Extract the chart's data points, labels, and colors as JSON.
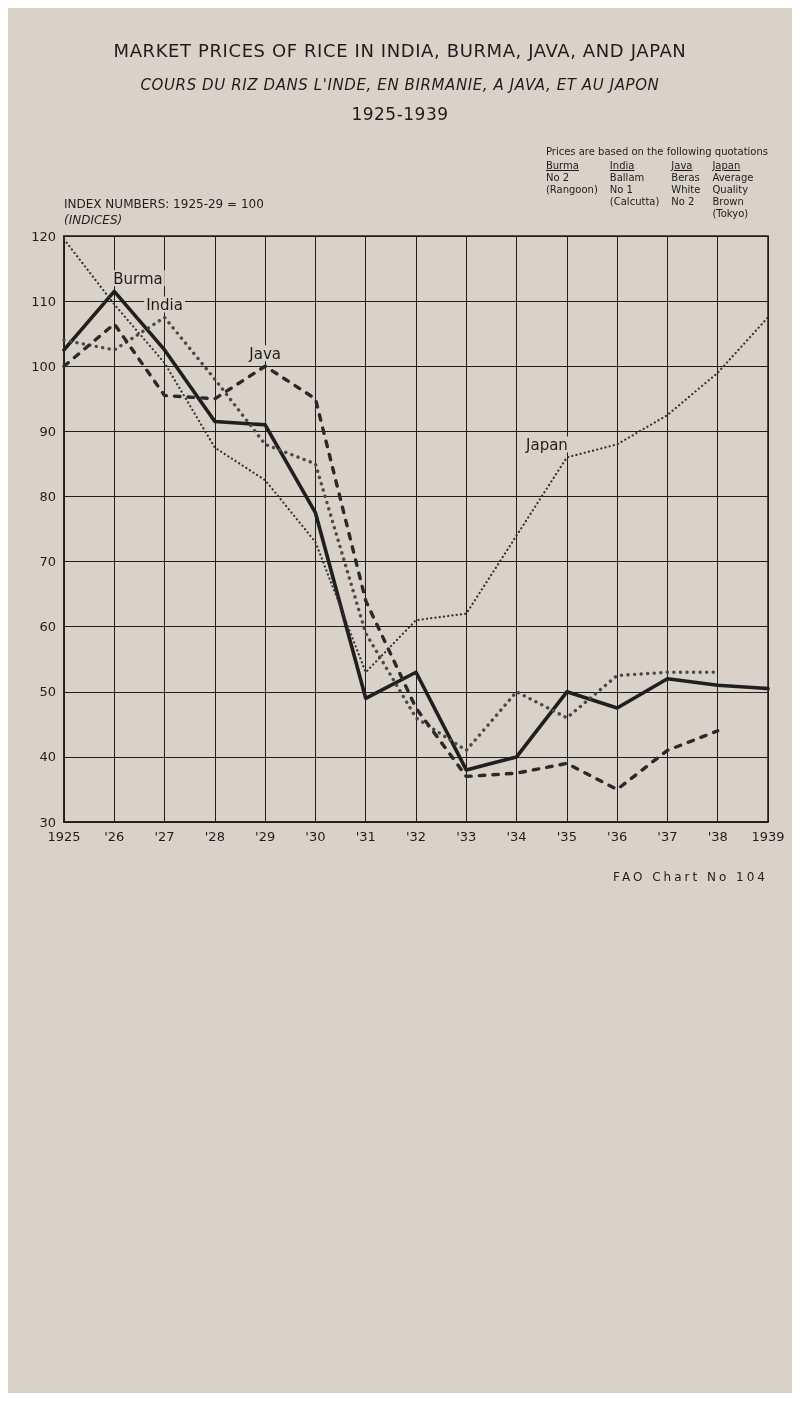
{
  "chart_data": {
    "type": "line",
    "title": "MARKET PRICES OF RICE IN INDIA, BURMA, JAVA, AND JAPAN",
    "subtitle": "COURS DU RIZ DANS L'INDE, EN BIRMANIE, A JAVA, ET AU JAPON\n1925-1939",
    "ylabel": "INDEX NUMBERS: 1925-29 = 100\n(INDICES)",
    "x": [
      1925,
      1926,
      1927,
      1928,
      1929,
      1930,
      1931,
      1932,
      1933,
      1934,
      1935,
      1936,
      1937,
      1938,
      1939
    ],
    "series": [
      {
        "name": "Burma",
        "color": "#1f1f1f",
        "line_style": "solid",
        "values": [
          102.5,
          111.5,
          102.5,
          91.5,
          91,
          77.5,
          49,
          53,
          38,
          40,
          50,
          47.5,
          52,
          51,
          50.5
        ]
      },
      {
        "name": "India",
        "color": "#4a4a4a",
        "line_style": "dotted",
        "values": [
          104,
          102.5,
          107.5,
          98,
          88,
          85,
          59,
          46,
          41,
          50,
          46,
          52.5,
          53,
          53,
          null
        ]
      },
      {
        "name": "Java",
        "color": "#2a2a2a",
        "line_style": "dashed",
        "values": [
          100,
          106.5,
          95.5,
          95,
          100,
          95,
          64,
          47.5,
          37,
          37.5,
          39,
          35,
          41,
          44,
          null
        ]
      },
      {
        "name": "Japan",
        "color": "#333333",
        "line_style": "dotted",
        "values": [
          119.5,
          109.5,
          100.5,
          87.5,
          82.5,
          73,
          53,
          61,
          62,
          74,
          86,
          88,
          92.5,
          99,
          107.5
        ]
      }
    ],
    "xlim": [
      1925,
      1939
    ],
    "xticks": [
      1925,
      {
        "value": 1926,
        "label": "'26"
      },
      {
        "value": 1927,
        "label": "'27"
      },
      {
        "value": 1928,
        "label": "'28"
      },
      {
        "value": 1929,
        "label": "'29"
      },
      {
        "value": 1930,
        "label": "'30"
      },
      {
        "value": 1931,
        "label": "'31"
      },
      {
        "value": 1932,
        "label": "'32"
      },
      {
        "value": 1933,
        "label": "'33"
      },
      {
        "value": 1934,
        "label": "'34"
      },
      {
        "value": 1935,
        "label": "'35"
      },
      {
        "value": 1936,
        "label": "'36"
      },
      {
        "value": 1937,
        "label": "'37"
      },
      {
        "value": 1938,
        "label": "'38"
      },
      1939
    ],
    "ylim": [
      30,
      120
    ],
    "yticks": [
      30,
      40,
      50,
      60,
      70,
      80,
      90,
      100,
      110,
      120
    ],
    "grid": true,
    "annotations": [
      "Prices are based on the following quotations",
      "Burma\nNo 2\n(Rangoon)",
      "India\nBallam\nNo 1\n(Calcutta)",
      "Java\nBeras\nWhite\nNo 2",
      "Japan\nAverage\nQuality\nBrown\n(Tokyo)",
      "FAO Chart No 104"
    ]
  }
}
